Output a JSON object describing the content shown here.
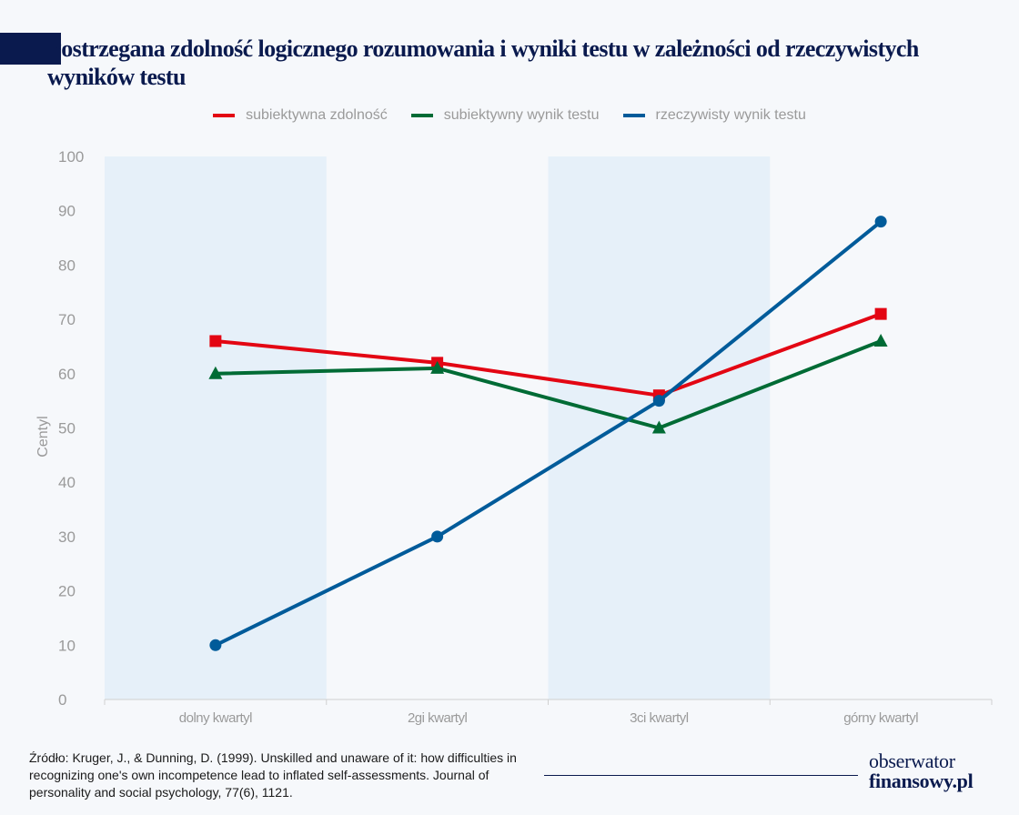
{
  "header": {
    "title": "Postrzegana zdolność logicznego rozumowania i wyniki testu w zależności od rzeczywistych wyników testu"
  },
  "chart_data": {
    "type": "line",
    "title": "Postrzegana zdolność logicznego rozumowania i wyniki testu w zależności od rzeczywistych wyników testu",
    "xlabel": "",
    "ylabel": "Centyl",
    "ylim": [
      0,
      100
    ],
    "yticks": [
      0,
      10,
      20,
      30,
      40,
      50,
      60,
      70,
      80,
      90,
      100
    ],
    "categories": [
      "dolny kwartyl",
      "2gi kwartyl",
      "3ci kwartyl",
      "górny kwartyl"
    ],
    "shaded_bands": [
      "dolny kwartyl",
      "3ci kwartyl"
    ],
    "legend_position": "top",
    "grid": false,
    "series": [
      {
        "name": "subiektywna zdolność",
        "color": "#e30613",
        "marker": "square",
        "values": [
          66,
          62,
          56,
          71
        ]
      },
      {
        "name": "subiektywny wynik testu",
        "color": "#006b35",
        "marker": "triangle",
        "values": [
          60,
          61,
          50,
          66
        ]
      },
      {
        "name": "rzeczywisty wynik testu",
        "color": "#005b9a",
        "marker": "circle",
        "values": [
          10,
          30,
          55,
          88
        ]
      }
    ]
  },
  "colors": {
    "brand_navy": "#0a1a4e",
    "band": "#e6f0f9"
  },
  "footer": {
    "source": "Źródło: Kruger, J., & Dunning, D. (1999). Unskilled and unaware of it: how difficulties in recognizing one's own incompetence lead to inflated self-assessments. Journal of personality and social psychology, 77(6), 1121.",
    "logo_line1": "obserwator",
    "logo_line2": "finansowy.pl"
  }
}
